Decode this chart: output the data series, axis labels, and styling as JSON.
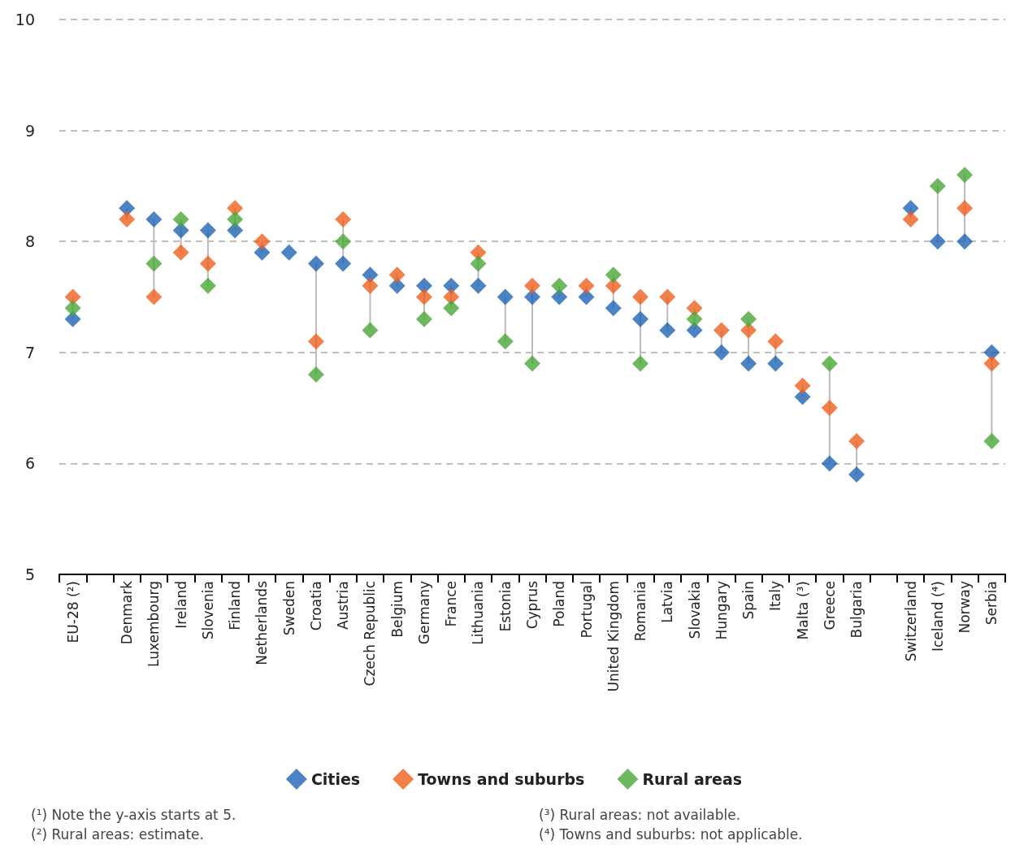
{
  "chart_data": {
    "type": "scatter",
    "marker": "diamond",
    "grid": "y",
    "legend": "bottom",
    "categories": [
      "EU-28 (²)",
      null,
      "Denmark",
      "Luxembourg",
      "Ireland",
      "Slovenia",
      "Finland",
      "Netherlands",
      "Sweden",
      "Croatia",
      "Austria",
      "Czech Republic",
      "Belgium",
      "Germany",
      "France",
      "Lithuania",
      "Estonia",
      "Cyprus",
      "Poland",
      "Portugal",
      "United Kingdom",
      "Romania",
      "Latvia",
      "Slovakia",
      "Hungary",
      "Spain",
      "Italy",
      "Malta (³)",
      "Greece",
      "Bulgaria",
      null,
      "Switzerland",
      "Iceland (⁴)",
      "Norway",
      "Serbia"
    ],
    "ylim": [
      5,
      10
    ],
    "yticks": [
      5,
      6,
      7,
      8,
      9,
      10
    ],
    "series": [
      {
        "name": "Cities",
        "color": "#1f64b4",
        "values": [
          7.3,
          null,
          8.3,
          8.2,
          8.1,
          8.1,
          8.1,
          7.9,
          7.9,
          7.8,
          7.8,
          7.7,
          7.6,
          7.6,
          7.6,
          7.6,
          7.5,
          7.5,
          7.5,
          7.5,
          7.4,
          7.3,
          7.2,
          7.2,
          7.0,
          6.9,
          6.9,
          6.6,
          6.0,
          5.9,
          null,
          8.3,
          8.0,
          8.0,
          7.0
        ]
      },
      {
        "name": "Towns and suburbs",
        "color": "#f0601e",
        "values": [
          7.5,
          null,
          8.2,
          7.5,
          7.9,
          7.8,
          8.3,
          8.0,
          null,
          7.1,
          8.2,
          7.6,
          7.7,
          7.5,
          7.5,
          7.9,
          null,
          7.6,
          null,
          7.6,
          7.6,
          7.5,
          7.5,
          7.4,
          7.2,
          7.2,
          7.1,
          6.7,
          6.5,
          6.2,
          null,
          8.2,
          null,
          8.3,
          6.9
        ]
      },
      {
        "name": "Rural areas",
        "color": "#4aa838",
        "values": [
          7.4,
          null,
          null,
          7.8,
          8.2,
          7.6,
          8.2,
          null,
          null,
          6.8,
          8.0,
          7.2,
          null,
          7.3,
          7.4,
          7.8,
          7.1,
          6.9,
          7.6,
          null,
          7.7,
          6.9,
          null,
          7.3,
          null,
          7.3,
          null,
          null,
          6.9,
          null,
          null,
          null,
          8.5,
          8.6,
          6.2
        ]
      }
    ],
    "annotations": [
      "(¹) Note the y-axis starts at 5.",
      "(²) Rural areas: estimate.",
      "(³) Rural areas: not available.",
      "(⁴) Towns and suburbs: not applicable."
    ]
  }
}
